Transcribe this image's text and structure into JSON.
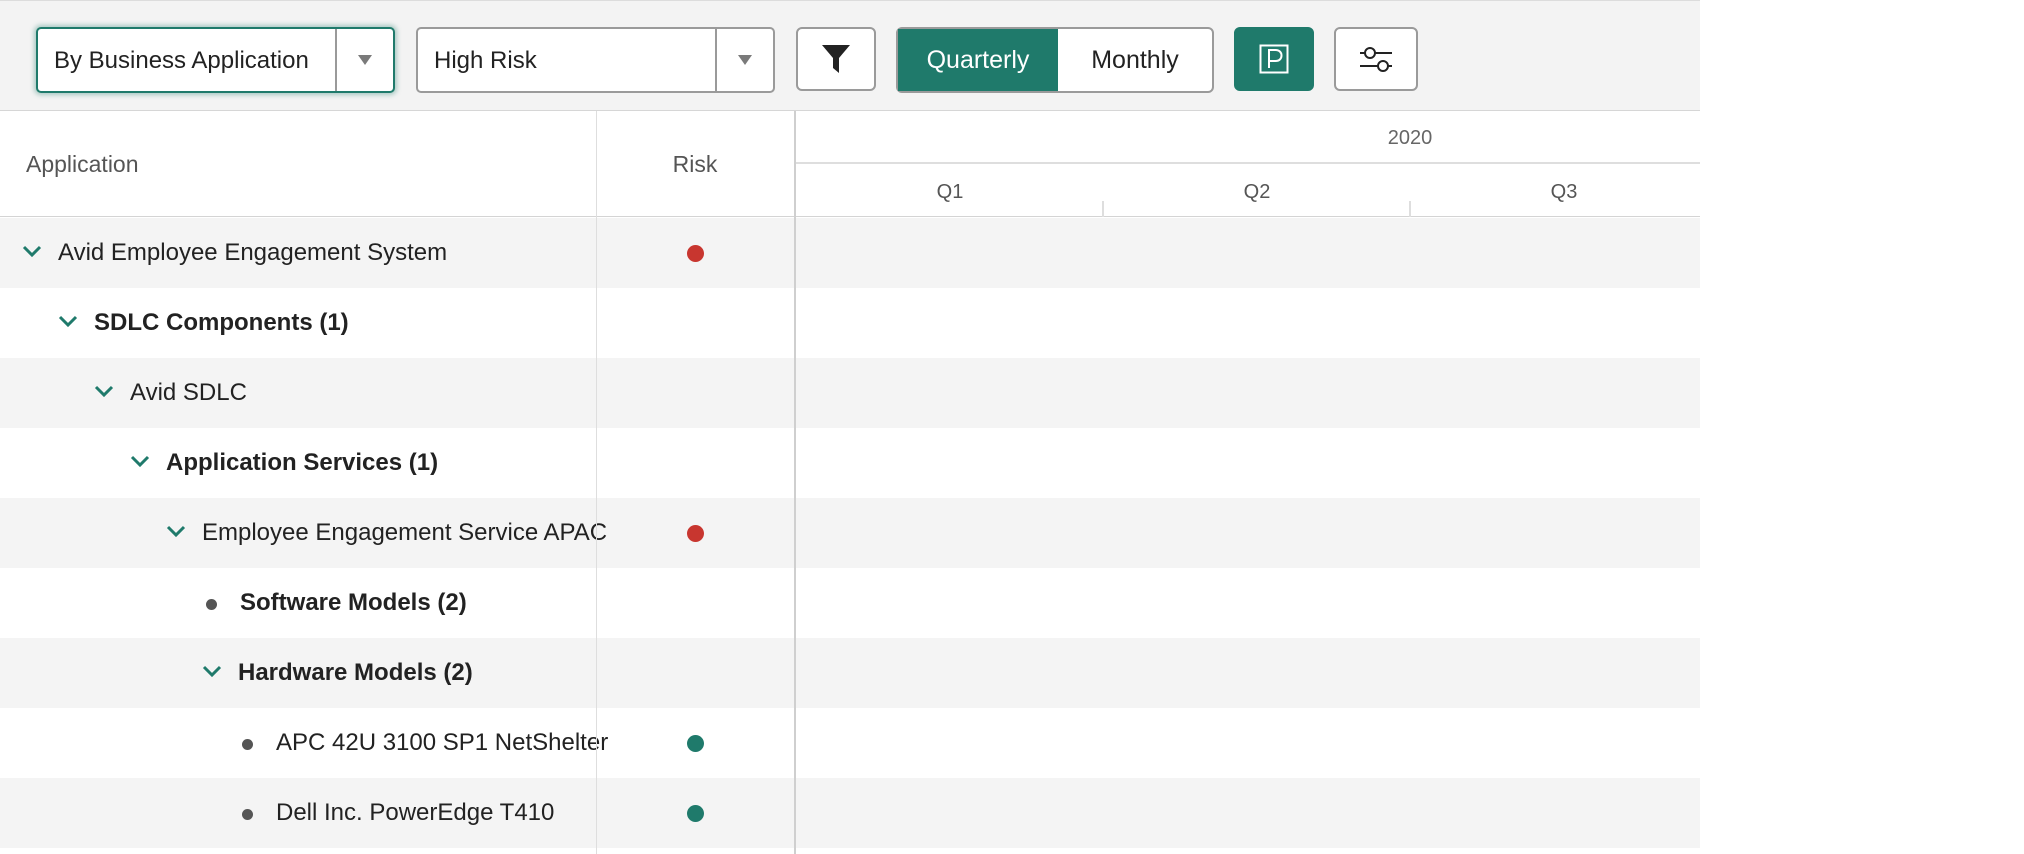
{
  "toolbar": {
    "group_by": {
      "selected": "By Business Application"
    },
    "risk_filter": {
      "selected": "High Risk"
    },
    "view_toggle": {
      "quarterly": "Quarterly",
      "monthly": "Monthly",
      "active": "Quarterly"
    },
    "icons": [
      "filter-icon",
      "parking-icon",
      "sliders-icon"
    ],
    "accent_color": "#1f7a6b"
  },
  "grid": {
    "columns": {
      "application": "Application",
      "risk": "Risk"
    },
    "timeline": {
      "year": "2020",
      "quarters": [
        "Q1",
        "Q2",
        "Q3"
      ]
    },
    "rows": [
      {
        "label": "Avid Employee Engagement System",
        "bold": false,
        "toggle": "expanded",
        "risk": "high"
      },
      {
        "label": "SDLC Components (1)",
        "bold": true,
        "toggle": "expanded",
        "risk": null
      },
      {
        "label": "Avid SDLC",
        "bold": false,
        "toggle": "expanded",
        "risk": null
      },
      {
        "label": "Application Services (1)",
        "bold": true,
        "toggle": "expanded",
        "risk": null
      },
      {
        "label": "Employee Engagement Service APAC",
        "bold": false,
        "toggle": "expanded",
        "risk": "high"
      },
      {
        "label": "Software Models (2)",
        "bold": true,
        "toggle": "leaf",
        "risk": null
      },
      {
        "label": "Hardware Models (2)",
        "bold": true,
        "toggle": "expanded",
        "risk": null
      },
      {
        "label": "APC 42U 3100 SP1 NetShelter",
        "bold": false,
        "toggle": "leaf",
        "risk": "low"
      },
      {
        "label": "Dell Inc. PowerEdge T410",
        "bold": false,
        "toggle": "leaf",
        "risk": "low"
      }
    ],
    "risk_colors": {
      "high": "#c8362f",
      "low": "#1f7a6b"
    }
  }
}
